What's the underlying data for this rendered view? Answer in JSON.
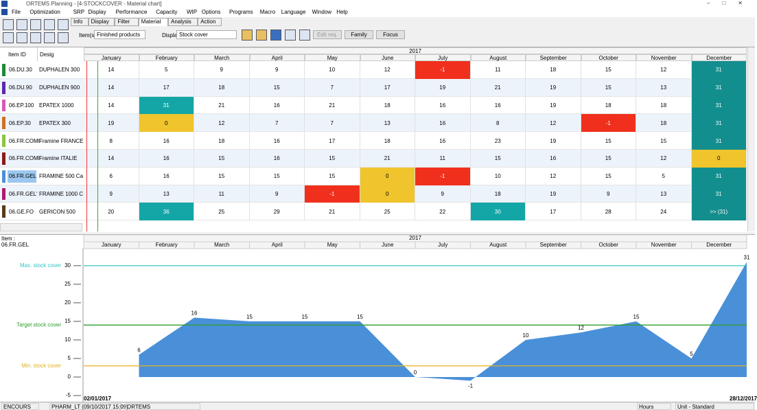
{
  "window": {
    "title": "ORTEMS  Planning - [4-STOCKCOVER - Material chart]"
  },
  "menu": [
    "File",
    "Optimization",
    "SRP",
    "Display",
    "Performance",
    "Capacity",
    "WIP",
    "Options",
    "Programs",
    "Macro",
    "Language",
    "Window",
    "Help"
  ],
  "tabs": [
    "Info",
    "Display",
    "Filter",
    "Material",
    "Analysis",
    "Action"
  ],
  "active_tab": "Material",
  "toolbar": {
    "items_label": "Item(s)",
    "items_value": "Finished products",
    "display_label": "Display",
    "display_value": "Stock cover",
    "buttons": [
      "Edit req.",
      "Family",
      "Focus"
    ]
  },
  "table": {
    "headers": [
      "Item ID",
      "Desig"
    ],
    "year": "2017",
    "months": [
      "January",
      "February",
      "March",
      "April",
      "May",
      "June",
      "July",
      "August",
      "September",
      "October",
      "November",
      "December"
    ],
    "selected_row": 6,
    "rows": [
      {
        "id": "06.DU.30",
        "desig": "DUPHALEN 300",
        "color": "#1f8a3a",
        "values": [
          "14",
          "5",
          "9",
          "9",
          "10",
          "12",
          "-1",
          "11",
          "18",
          "15",
          "12",
          "31"
        ]
      },
      {
        "id": "06.DU.90",
        "desig": "DUPHALEN 900",
        "color": "#5b2aa8",
        "values": [
          "14",
          "17",
          "18",
          "15",
          "7",
          "17",
          "19",
          "21",
          "19",
          "15",
          "13",
          "31"
        ]
      },
      {
        "id": "06.EP.100",
        "desig": "EPATEX 1000",
        "color": "#d957b8",
        "values": [
          "14",
          "31",
          "21",
          "16",
          "21",
          "18",
          "16",
          "16",
          "19",
          "18",
          "18",
          "31"
        ]
      },
      {
        "id": "06.EP.30",
        "desig": "EPATEX 300",
        "color": "#d0701e",
        "values": [
          "19",
          "0",
          "12",
          "7",
          "7",
          "13",
          "16",
          "8",
          "12",
          "-1",
          "18",
          "31"
        ]
      },
      {
        "id": "06.FR.COMI",
        "desig": "Framine FRANCE",
        "color": "#8cc63f",
        "values": [
          "8",
          "16",
          "18",
          "16",
          "17",
          "18",
          "16",
          "23",
          "19",
          "15",
          "15",
          "31"
        ]
      },
      {
        "id": "06.FR.COMI",
        "desig": "Framine ITALIE",
        "color": "#8b1a1a",
        "values": [
          "14",
          "16",
          "15",
          "16",
          "15",
          "21",
          "11",
          "15",
          "16",
          "15",
          "12",
          "0"
        ]
      },
      {
        "id": "06.FR.GEL",
        "desig": "FRAMINE 500 Ca",
        "color": "#4a90d9",
        "values": [
          "6",
          "16",
          "15",
          "15",
          "15",
          "0",
          "-1",
          "10",
          "12",
          "15",
          "5",
          "31"
        ]
      },
      {
        "id": "06.FR.GEL'",
        "desig": "FRAMINE 1000 C",
        "color": "#b0186e",
        "values": [
          "9",
          "13",
          "11",
          "9",
          "-1",
          "0",
          "9",
          "18",
          "19",
          "9",
          "13",
          "31"
        ]
      },
      {
        "id": "06.GE.FO",
        "desig": "GERICON 500",
        "color": "#5a3a1a",
        "values": [
          "20",
          "36",
          "25",
          "29",
          "21",
          "25",
          "22",
          "30",
          "17",
          "28",
          "24",
          ">> (31)"
        ]
      }
    ]
  },
  "chart_panel": {
    "item_label": "Item :",
    "item_value": "06.FR.GEL",
    "start_date": "02/01/2017",
    "end_date": "28/12/2017"
  },
  "chart_data": {
    "type": "area",
    "year": "2017",
    "categories": [
      "January",
      "February",
      "March",
      "April",
      "May",
      "June",
      "July",
      "August",
      "September",
      "October",
      "November",
      "December"
    ],
    "values": [
      6,
      16,
      15,
      15,
      15,
      0,
      -1,
      10,
      12,
      15,
      5,
      31
    ],
    "color": "#4a90d9",
    "ylim": [
      -5,
      34.6
    ],
    "yticks": [
      -5,
      0,
      5,
      10,
      15,
      20,
      25,
      30
    ],
    "reference_lines": [
      {
        "label": "Max. stock cover",
        "value": 30,
        "color": "#33c4c4"
      },
      {
        "label": "Target stock cover",
        "value": 14,
        "color": "#2e9e2e"
      },
      {
        "label": "Min. stock cover",
        "value": 3,
        "color": "#e0b020"
      }
    ]
  },
  "status_bar": [
    "ENCOURS",
    "PHARM_LT (09/10/2017 15:09)",
    "ORTEMS",
    "Hours",
    "Unit - Standard"
  ]
}
